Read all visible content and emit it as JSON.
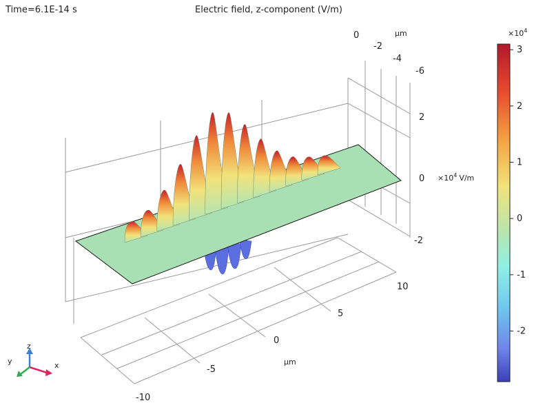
{
  "header": {
    "time_label": "Time=6.1E-14 s",
    "title": "Electric field, z-component (V/m)"
  },
  "axes": {
    "y_axis_ticks": [
      "0",
      "-2",
      "-4",
      "-6"
    ],
    "y_axis_unit": "µm",
    "z_axis_ticks": [
      "2",
      "0",
      "-2"
    ],
    "z_axis_multiplier": "×10",
    "z_axis_exponent": "4",
    "z_axis_unit": "V/m",
    "x_axis_ticks": [
      "10",
      "5",
      "0",
      "-5",
      "-10"
    ],
    "x_axis_unit": "µm"
  },
  "colorbar": {
    "multiplier": "×10",
    "exponent": "4",
    "ticks": [
      "3",
      "2",
      "1",
      "0",
      "-1",
      "-2"
    ],
    "colors": [
      "#b2182b",
      "#e84a2e",
      "#f4a040",
      "#f2e27a",
      "#b6e6b0",
      "#8ff0e6",
      "#6fc8ee",
      "#6f86ec",
      "#3b3fb8"
    ]
  },
  "triad": {
    "z_label": "z",
    "y_label": "y",
    "x_label": "x"
  },
  "chart_data": {
    "type": "surface",
    "title": "Electric field, z-component (V/m)",
    "time": "6.1E-14 s",
    "x_range_um": [
      -10,
      10
    ],
    "y_range_um": [
      -6,
      0
    ],
    "z_range": [
      -30000,
      30000
    ],
    "colorbar_range": [
      -30000,
      31000
    ],
    "wavefront_peaks_e4_Vm": [
      0.2,
      0.4,
      0.9,
      1.6,
      2.4,
      3.0,
      2.8,
      2.2,
      1.5,
      0.9,
      0.5,
      0.3,
      0.15
    ],
    "negative_lobes_e4_Vm": [
      -0.9,
      -1.3,
      -1.1,
      -0.6
    ],
    "grid": true
  }
}
